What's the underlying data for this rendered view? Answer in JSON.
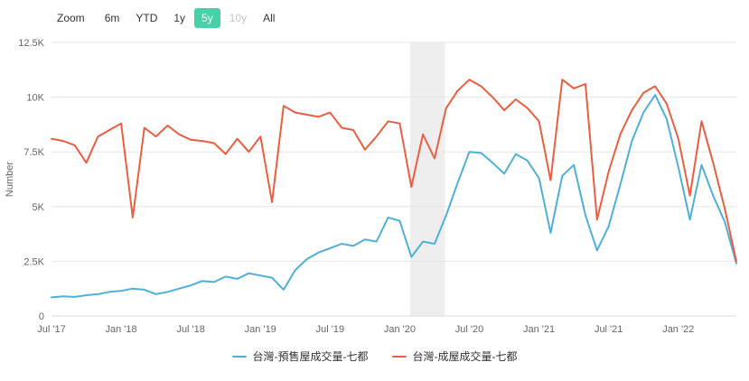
{
  "toolbar": {
    "zoom_label": "Zoom",
    "buttons": [
      {
        "label": "6m",
        "state": "normal"
      },
      {
        "label": "YTD",
        "state": "normal"
      },
      {
        "label": "1y",
        "state": "normal"
      },
      {
        "label": "5y",
        "state": "selected"
      },
      {
        "label": "10y",
        "state": "disabled"
      },
      {
        "label": "All",
        "state": "normal"
      }
    ],
    "selected_color": "#47d1a8"
  },
  "chart_data": {
    "type": "line",
    "title": "",
    "ylabel": "Number",
    "ylim": [
      0,
      12500
    ],
    "ytick_step": 2500,
    "ytick_labels": [
      "0",
      "2.5K",
      "5K",
      "7.5K",
      "10K",
      "12.5K"
    ],
    "x_start": "Jul '17",
    "x_interval": "month",
    "xtick_labels": [
      "Jul '17",
      "Jan '18",
      "Jul '18",
      "Jan '19",
      "Jul '19",
      "Jan '20",
      "Jul '20",
      "Jan '21",
      "Jul '21",
      "Jan '22"
    ],
    "xtick_month_indices": [
      0,
      6,
      12,
      18,
      24,
      30,
      36,
      42,
      48,
      54
    ],
    "grid": true,
    "legend_position": "bottom",
    "plot_band": {
      "from_month_index": 30.9,
      "to_month_index": 33.9,
      "color": "#eeeeee"
    },
    "axis_color": "#d8d8d8",
    "grid_color": "#e6e6e6",
    "tick_label_color": "#666666",
    "series": [
      {
        "name": "台灣-預售屋成交量-七都",
        "color": "#4FAFD9",
        "values": [
          850,
          900,
          870,
          950,
          1000,
          1100,
          1150,
          1250,
          1200,
          1000,
          1100,
          1250,
          1400,
          1600,
          1550,
          1800,
          1700,
          1950,
          1850,
          1750,
          1200,
          2100,
          2600,
          2900,
          3100,
          3300,
          3200,
          3500,
          3400,
          4500,
          4350,
          2700,
          3400,
          3300,
          4600,
          6100,
          7500,
          7450,
          7000,
          6500,
          7400,
          7100,
          6300,
          3800,
          6400,
          6900,
          4600,
          3000,
          4100,
          6000,
          8000,
          9300,
          10100,
          9000,
          6800,
          4400,
          6900,
          5500,
          4300,
          2400
        ]
      },
      {
        "name": "台灣-成屋成交量-七都",
        "color": "#EB5E41",
        "values": [
          8100,
          8000,
          7800,
          7000,
          8200,
          8500,
          8800,
          4500,
          8600,
          8200,
          8700,
          8300,
          8050,
          8000,
          7900,
          7400,
          8100,
          7500,
          8200,
          5200,
          9600,
          9300,
          9200,
          9100,
          9300,
          8600,
          8500,
          7600,
          8200,
          8900,
          8800,
          5900,
          8300,
          7200,
          9500,
          10300,
          10800,
          10500,
          10000,
          9400,
          9900,
          9500,
          8900,
          6200,
          10800,
          10400,
          10600,
          4400,
          6600,
          8300,
          9400,
          10200,
          10500,
          9700,
          8100,
          5500,
          8900,
          7000,
          4900,
          2500
        ]
      }
    ]
  }
}
